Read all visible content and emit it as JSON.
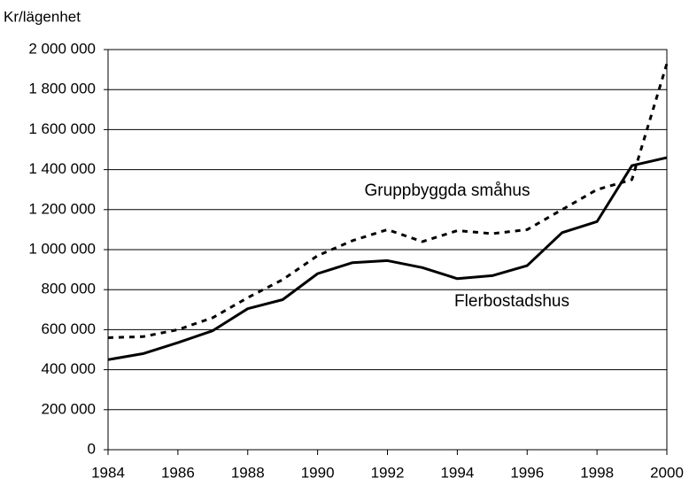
{
  "chart_data": {
    "type": "line",
    "ylabel": "Kr/lägenhet",
    "x": [
      1984,
      1985,
      1986,
      1987,
      1988,
      1989,
      1990,
      1991,
      1992,
      1993,
      1994,
      1995,
      1996,
      1997,
      1998,
      1999,
      2000
    ],
    "series": [
      {
        "name": "Gruppbyggda småhus",
        "color": "#000000",
        "style": "dashed",
        "values": [
          560000,
          565000,
          600000,
          660000,
          760000,
          850000,
          970000,
          1045000,
          1100000,
          1040000,
          1095000,
          1080000,
          1100000,
          1200000,
          1300000,
          1350000,
          1930000
        ]
      },
      {
        "name": "Flerbostadshus",
        "color": "#000000",
        "style": "solid",
        "values": [
          450000,
          480000,
          535000,
          595000,
          705000,
          750000,
          880000,
          935000,
          945000,
          910000,
          855000,
          870000,
          920000,
          1085000,
          1140000,
          1420000,
          1460000
        ]
      }
    ],
    "xlim": [
      1984,
      2000
    ],
    "xticks": [
      1984,
      1986,
      1988,
      1990,
      1992,
      1994,
      1996,
      1998,
      2000
    ],
    "ylim": [
      0,
      2000000
    ],
    "yticks": [
      0,
      {
        "value": 200000,
        "label": "200 000"
      },
      {
        "value": 400000,
        "label": "400 000"
      },
      {
        "value": 600000,
        "label": "600 000"
      },
      {
        "value": 800000,
        "label": "800 000"
      },
      {
        "value": 1000000,
        "label": "1 000 000"
      },
      {
        "value": 1200000,
        "label": "1 200 000"
      },
      {
        "value": 1400000,
        "label": "1 400 000"
      },
      {
        "value": 1600000,
        "label": "1 600 000"
      },
      {
        "value": 1800000,
        "label": "1 800 000"
      },
      {
        "value": 2000000,
        "label": "2 000 000"
      }
    ],
    "grid": true
  }
}
